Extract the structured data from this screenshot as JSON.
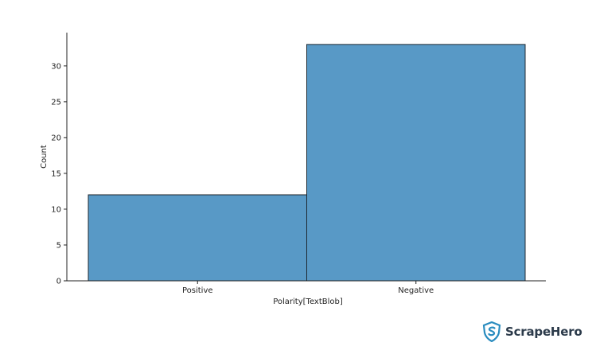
{
  "chart_data": {
    "type": "bar",
    "categories": [
      "Positive",
      "Negative"
    ],
    "values": [
      12,
      33
    ],
    "xlabel": "Polarity[TextBlob]",
    "ylabel": "Count",
    "ylim": [
      0,
      34.65
    ],
    "yticks": [
      0,
      5,
      10,
      15,
      20,
      25,
      30
    ],
    "grid": false,
    "legend": false,
    "colors": {
      "bar": "#5899c6",
      "edge": "#1f2a33",
      "axis": "#222222"
    }
  },
  "watermark": {
    "text": "ScrapeHero",
    "icon": "shield-s-logo-icon",
    "color": "#2a8cbf"
  }
}
